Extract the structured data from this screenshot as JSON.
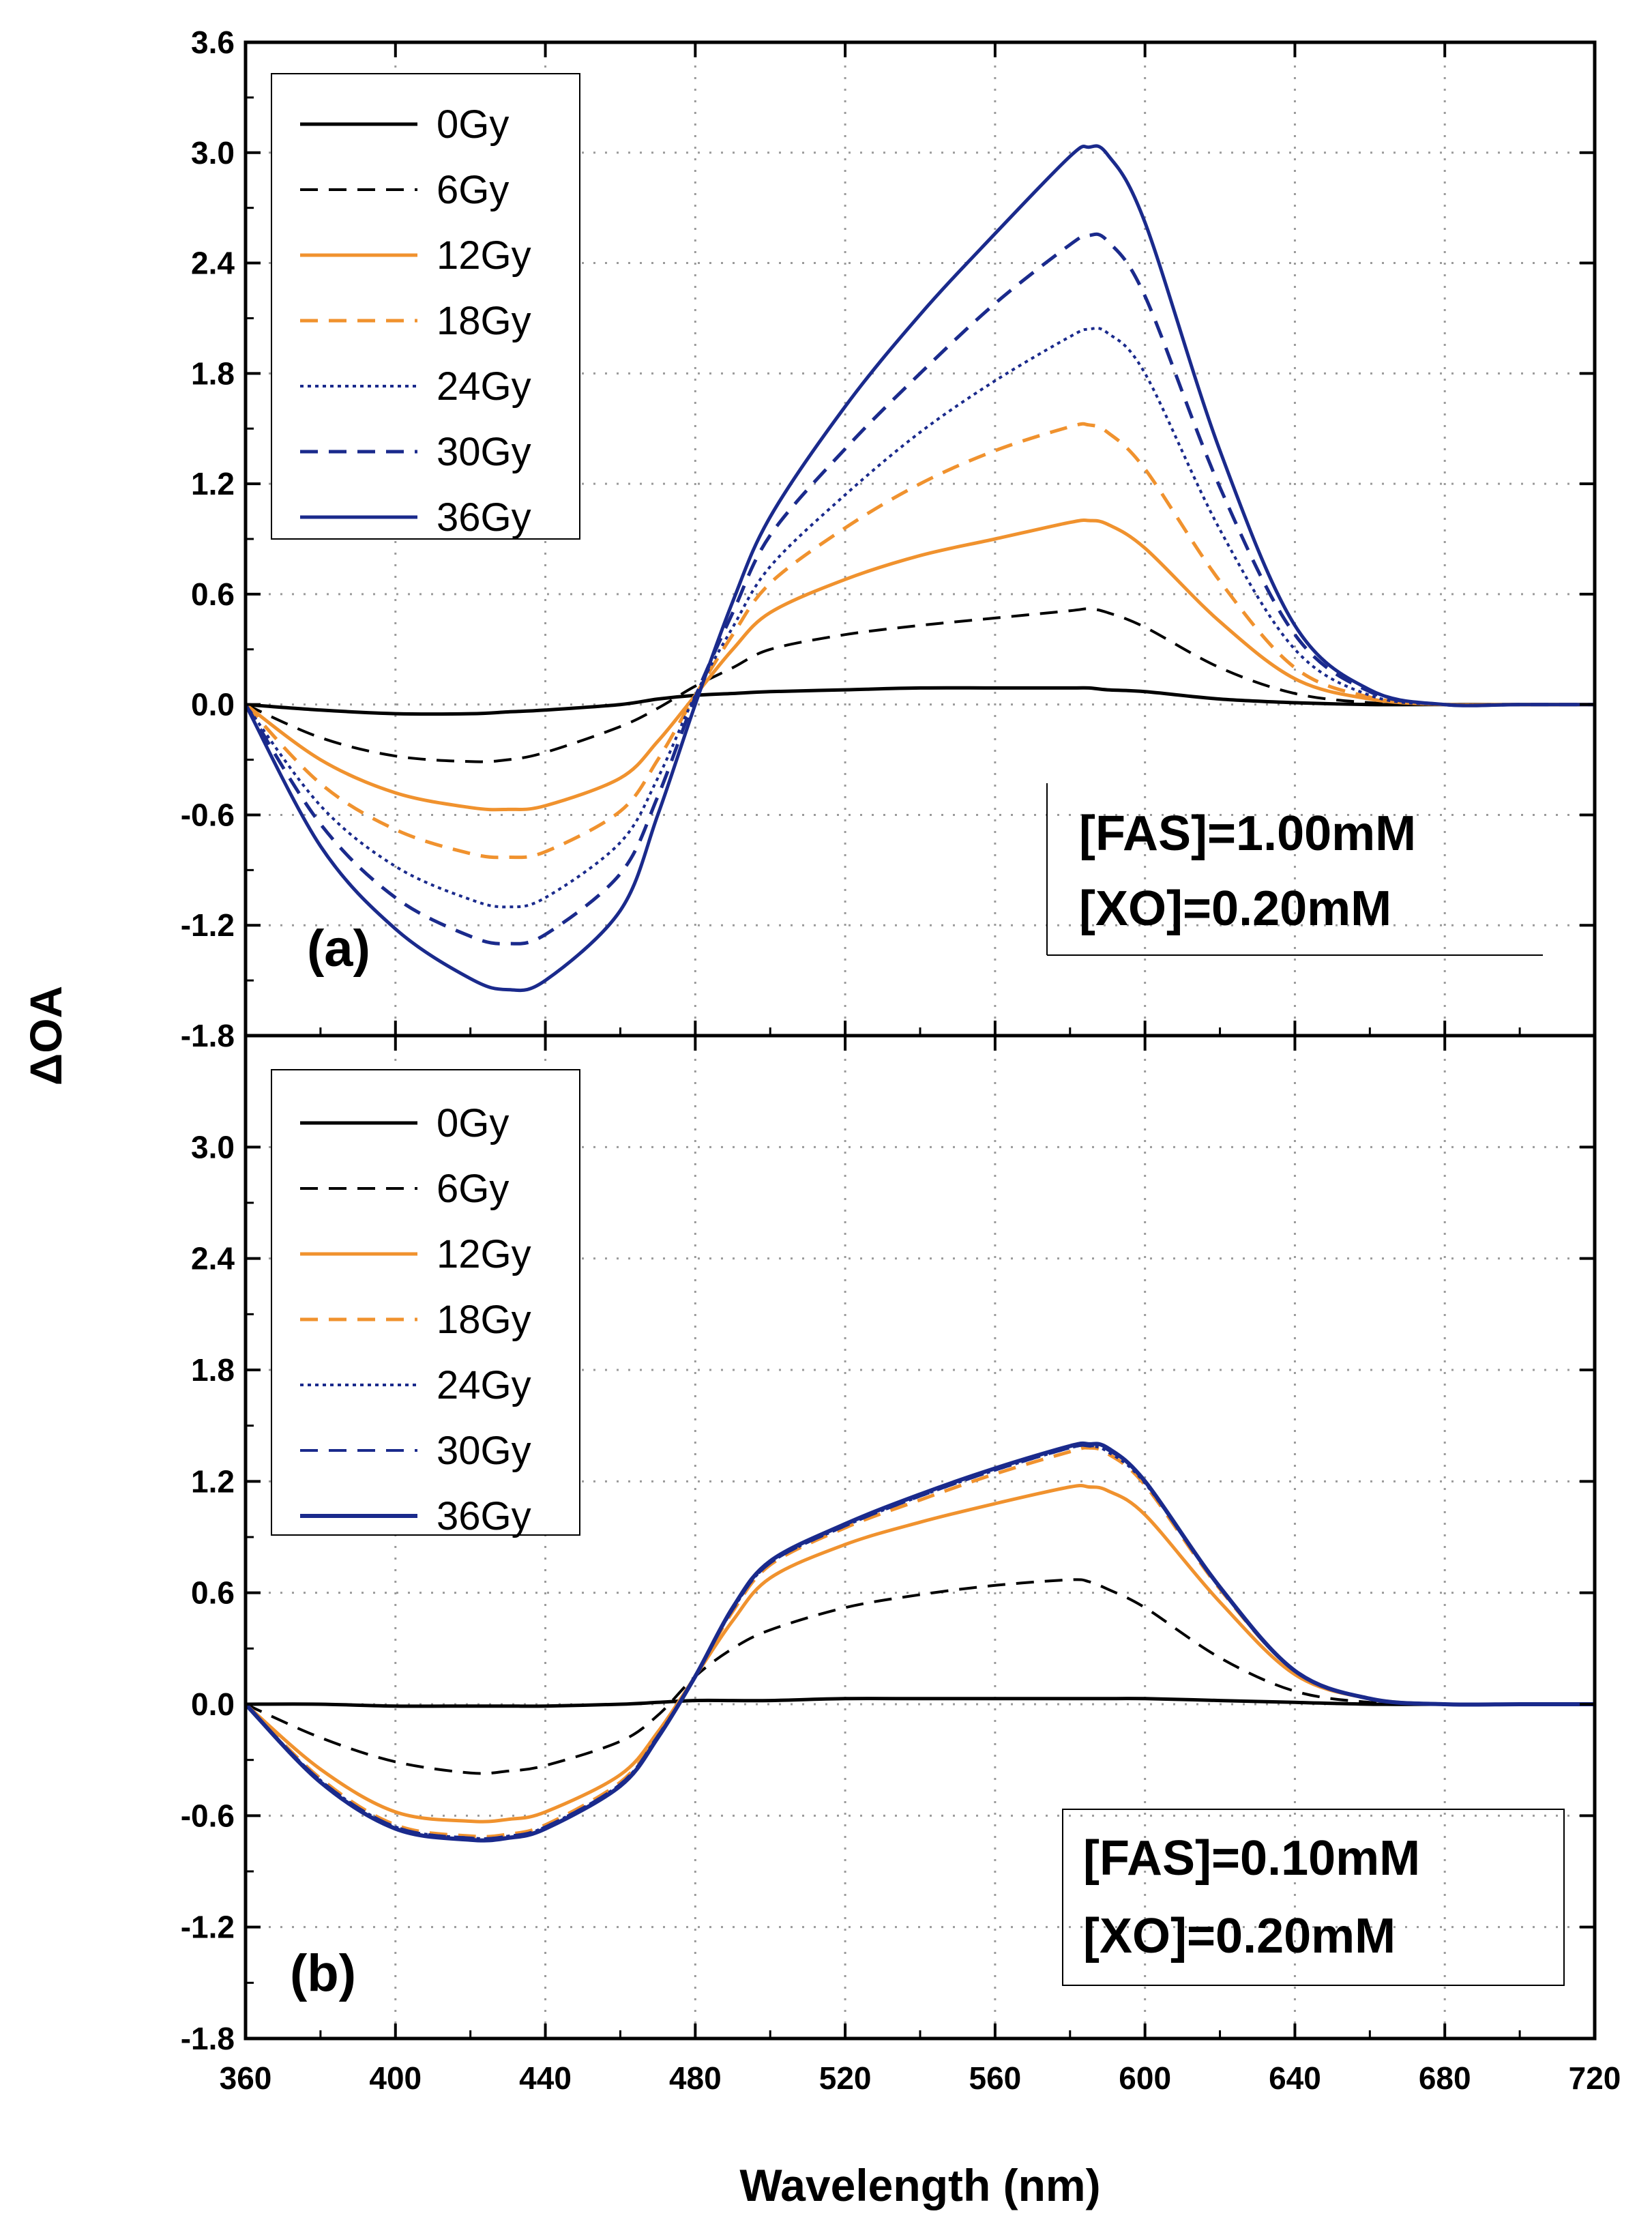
{
  "chart_data": {
    "type": "line",
    "xlabel": "Wavelength (nm)",
    "ylabel": "ΔOA",
    "xlim": [
      360,
      720
    ],
    "ylim": [
      -1.8,
      3.6
    ],
    "x_ticks": [
      "360",
      "400",
      "440",
      "480",
      "520",
      "560",
      "600",
      "640",
      "680",
      "720"
    ],
    "y_ticks": [
      "3.6",
      "3.0",
      "2.4",
      "1.8",
      "1.2",
      "0.6",
      "0.0",
      "-0.6",
      "-1.2",
      "-1.8"
    ],
    "y_ticks_b": [
      "3.0",
      "2.4",
      "1.8",
      "1.2",
      "0.6",
      "0.0",
      "-0.6",
      "-1.2",
      "-1.8"
    ],
    "grid": "dotted",
    "panels": [
      {
        "label": "(a)",
        "annotation": [
          "[FAS]=1.00mM",
          "[XO]=0.20mM"
        ],
        "legend_position": "top-left",
        "x": [
          360,
          380,
          400,
          420,
          430,
          440,
          460,
          470,
          480,
          490,
          500,
          520,
          540,
          560,
          580,
          585,
          590,
          600,
          620,
          640,
          660,
          680,
          700,
          720
        ],
        "series": [
          {
            "name": "0Gy",
            "color": "#000000",
            "style": "solid",
            "width": 5,
            "values": [
              0.0,
              -0.03,
              -0.05,
              -0.05,
              -0.04,
              -0.03,
              0.0,
              0.03,
              0.05,
              0.06,
              0.07,
              0.08,
              0.09,
              0.09,
              0.09,
              0.09,
              0.08,
              0.07,
              0.03,
              0.01,
              0.0,
              0.0,
              0.0,
              0.0
            ]
          },
          {
            "name": "6Gy",
            "color": "#000000",
            "style": "dashed",
            "width": 4,
            "values": [
              0.0,
              -0.18,
              -0.28,
              -0.31,
              -0.3,
              -0.26,
              -0.12,
              -0.02,
              0.1,
              0.2,
              0.3,
              0.38,
              0.43,
              0.47,
              0.51,
              0.52,
              0.5,
              0.42,
              0.2,
              0.06,
              0.01,
              0.0,
              0.0,
              0.0
            ]
          },
          {
            "name": "12Gy",
            "color": "#f0922e",
            "style": "solid",
            "width": 5,
            "values": [
              0.0,
              -0.3,
              -0.48,
              -0.56,
              -0.57,
              -0.55,
              -0.4,
              -0.2,
              0.05,
              0.3,
              0.5,
              0.68,
              0.81,
              0.9,
              0.99,
              1.0,
              0.98,
              0.85,
              0.45,
              0.14,
              0.03,
              0.0,
              0.0,
              0.0
            ]
          },
          {
            "name": "18Gy",
            "color": "#f0922e",
            "style": "dashed",
            "width": 5,
            "values": [
              0.0,
              -0.43,
              -0.68,
              -0.81,
              -0.83,
              -0.8,
              -0.58,
              -0.3,
              0.05,
              0.38,
              0.66,
              0.96,
              1.2,
              1.38,
              1.51,
              1.52,
              1.48,
              1.28,
              0.67,
              0.2,
              0.04,
              0.0,
              0.0,
              0.0
            ]
          },
          {
            "name": "24Gy",
            "color": "#1a2a8c",
            "style": "dotted",
            "width": 4,
            "values": [
              0.0,
              -0.55,
              -0.88,
              -1.06,
              -1.1,
              -1.05,
              -0.75,
              -0.4,
              0.05,
              0.42,
              0.75,
              1.14,
              1.48,
              1.76,
              2.0,
              2.04,
              2.02,
              1.8,
              0.95,
              0.3,
              0.05,
              0.0,
              0.0,
              0.0
            ]
          },
          {
            "name": "30Gy",
            "color": "#1a2a8c",
            "style": "dashed",
            "width": 5,
            "values": [
              0.0,
              -0.65,
              -1.05,
              -1.26,
              -1.3,
              -1.25,
              -0.92,
              -0.5,
              0.04,
              0.5,
              0.92,
              1.39,
              1.8,
              2.18,
              2.5,
              2.55,
              2.52,
              2.22,
              1.18,
              0.38,
              0.07,
              0.0,
              0.0,
              0.0
            ]
          },
          {
            "name": "36Gy",
            "color": "#1a2a8c",
            "style": "solid",
            "width": 5,
            "values": [
              0.0,
              -0.77,
              -1.22,
              -1.49,
              -1.55,
              -1.5,
              -1.12,
              -0.6,
              0.0,
              0.56,
              1.02,
              1.62,
              2.12,
              2.56,
              2.98,
              3.03,
              2.99,
              2.62,
              1.38,
              0.43,
              0.08,
              0.0,
              0.0,
              0.0
            ]
          }
        ]
      },
      {
        "label": "(b)",
        "annotation": [
          "[FAS]=0.10mM",
          "[XO]=0.20mM"
        ],
        "legend_position": "top-left",
        "x": [
          360,
          380,
          400,
          420,
          430,
          440,
          460,
          470,
          480,
          490,
          500,
          520,
          540,
          560,
          580,
          585,
          590,
          600,
          620,
          640,
          660,
          680,
          700,
          720
        ],
        "series": [
          {
            "name": "0Gy",
            "color": "#000000",
            "style": "solid",
            "width": 5,
            "values": [
              0.0,
              0.0,
              -0.01,
              -0.01,
              -0.01,
              -0.01,
              0.0,
              0.01,
              0.02,
              0.02,
              0.02,
              0.03,
              0.03,
              0.03,
              0.03,
              0.03,
              0.03,
              0.03,
              0.02,
              0.01,
              0.0,
              0.0,
              0.0,
              0.0
            ]
          },
          {
            "name": "6Gy",
            "color": "#000000",
            "style": "dashed",
            "width": 4,
            "values": [
              0.0,
              -0.18,
              -0.31,
              -0.37,
              -0.36,
              -0.33,
              -0.2,
              -0.06,
              0.15,
              0.3,
              0.4,
              0.52,
              0.59,
              0.64,
              0.67,
              0.66,
              0.62,
              0.52,
              0.25,
              0.07,
              0.01,
              0.0,
              0.0,
              0.0
            ]
          },
          {
            "name": "12Gy",
            "color": "#f0922e",
            "style": "solid",
            "width": 5,
            "values": [
              0.0,
              -0.35,
              -0.58,
              -0.63,
              -0.62,
              -0.58,
              -0.38,
              -0.15,
              0.15,
              0.45,
              0.68,
              0.86,
              0.98,
              1.08,
              1.17,
              1.17,
              1.15,
              1.02,
              0.55,
              0.16,
              0.03,
              0.0,
              0.0,
              0.0
            ]
          },
          {
            "name": "18Gy",
            "color": "#f0922e",
            "style": "dashed",
            "width": 5,
            "values": [
              0.0,
              -0.4,
              -0.65,
              -0.71,
              -0.7,
              -0.65,
              -0.42,
              -0.17,
              0.15,
              0.5,
              0.75,
              0.95,
              1.1,
              1.24,
              1.36,
              1.38,
              1.35,
              1.18,
              0.62,
              0.18,
              0.03,
              0.0,
              0.0,
              0.0
            ]
          },
          {
            "name": "24Gy",
            "color": "#1a2a8c",
            "style": "dotted",
            "width": 4,
            "values": [
              0.0,
              -0.41,
              -0.66,
              -0.72,
              -0.71,
              -0.66,
              -0.43,
              -0.17,
              0.15,
              0.51,
              0.76,
              0.96,
              1.12,
              1.26,
              1.38,
              1.39,
              1.36,
              1.19,
              0.63,
              0.18,
              0.03,
              0.0,
              0.0,
              0.0
            ]
          },
          {
            "name": "30Gy",
            "color": "#1a2a8c",
            "style": "dashed",
            "width": 4,
            "values": [
              0.0,
              -0.41,
              -0.66,
              -0.72,
              -0.71,
              -0.66,
              -0.43,
              -0.17,
              0.15,
              0.51,
              0.76,
              0.96,
              1.12,
              1.26,
              1.38,
              1.39,
              1.37,
              1.2,
              0.63,
              0.18,
              0.03,
              0.0,
              0.0,
              0.0
            ]
          },
          {
            "name": "36Gy",
            "color": "#1a2a8c",
            "style": "solid",
            "width": 6,
            "values": [
              0.0,
              -0.42,
              -0.67,
              -0.73,
              -0.72,
              -0.67,
              -0.44,
              -0.18,
              0.15,
              0.52,
              0.77,
              0.97,
              1.13,
              1.27,
              1.39,
              1.4,
              1.38,
              1.2,
              0.63,
              0.18,
              0.03,
              0.0,
              0.0,
              0.0
            ]
          }
        ]
      }
    ]
  }
}
